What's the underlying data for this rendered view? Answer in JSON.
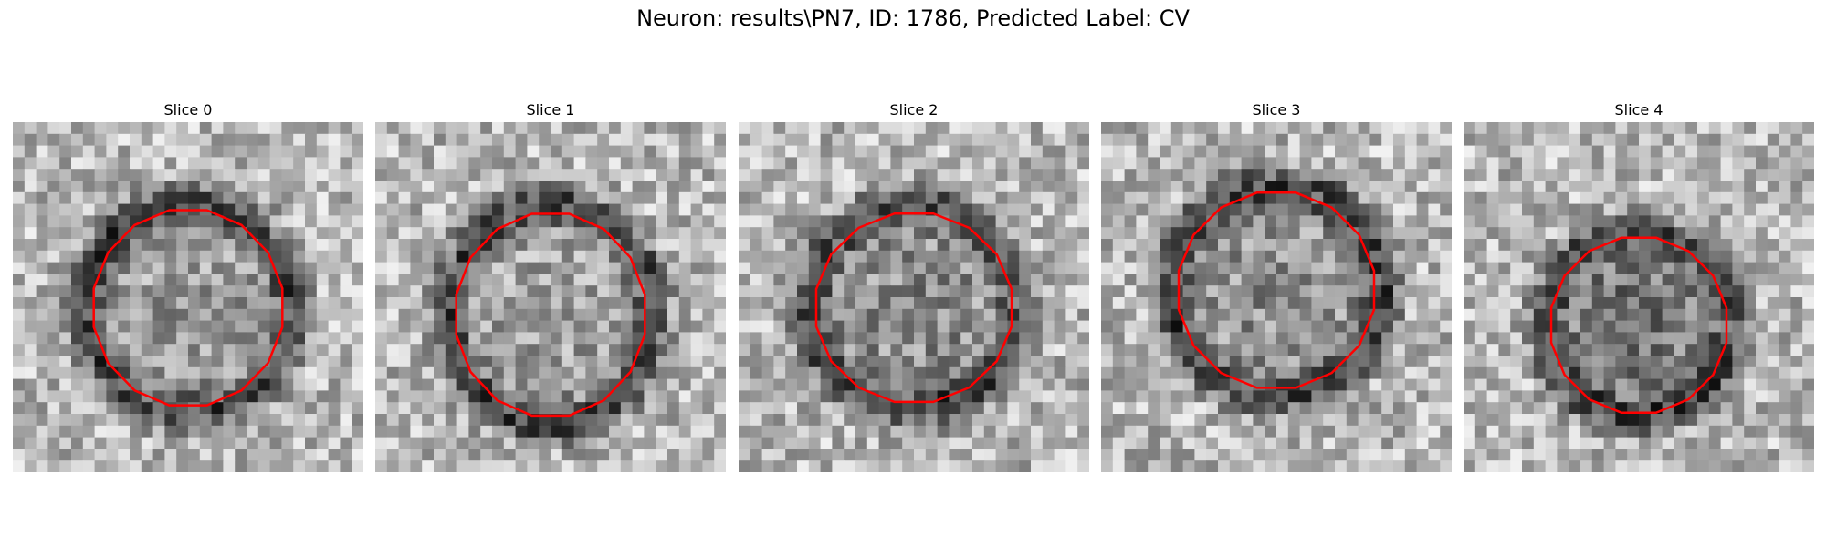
{
  "figure": {
    "title": "Neuron: results\\PN7, ID: 1786, Predicted Label: CV"
  },
  "colors": {
    "contour": "#ff0000",
    "grayscale_light": "#f2f2f2",
    "grayscale_dark": "#0a0a0a"
  },
  "panels": [
    {
      "title": "Slice 0",
      "image": "grayscale-microscopy-slice",
      "overlay": "red-contour"
    },
    {
      "title": "Slice 1",
      "image": "grayscale-microscopy-slice",
      "overlay": "red-contour"
    },
    {
      "title": "Slice 2",
      "image": "grayscale-microscopy-slice",
      "overlay": "red-contour"
    },
    {
      "title": "Slice 3",
      "image": "grayscale-microscopy-slice",
      "overlay": "red-contour"
    },
    {
      "title": "Slice 4",
      "image": "grayscale-microscopy-slice",
      "overlay": "red-contour"
    }
  ]
}
